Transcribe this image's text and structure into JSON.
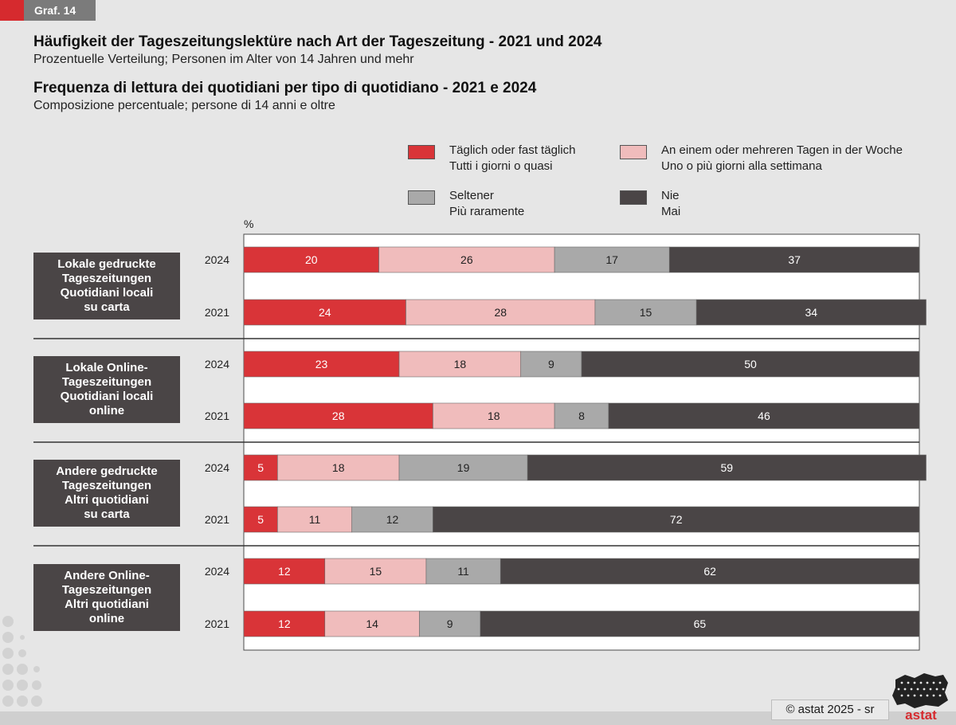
{
  "graf_label": "Graf. 14",
  "title_de": "Häufigkeit der Tageszeitungslektüre nach Art der Tageszeitung - 2021 und 2024",
  "subtitle_de": "Prozentuelle Verteilung; Personen im Alter von 14 Jahren und mehr",
  "title_it": "Frequenza di lettura dei quotidiani per tipo di quotidiano - 2021 e 2024",
  "subtitle_it": "Composizione percentuale; persone di 14 anni e oltre",
  "legend": [
    {
      "line1": "Täglich oder fast täglich",
      "line2": "Tutti i giorni o quasi",
      "color": "#d93438"
    },
    {
      "line1": "An einem oder mehreren Tagen in der Woche",
      "line2": "Uno o più giorni alla settimana",
      "color": "#f0bcbc"
    },
    {
      "line1": "Seltener",
      "line2": "Più raramente",
      "color": "#a9a9a9"
    },
    {
      "line1": "Nie",
      "line2": "Mai",
      "color": "#4a4546"
    }
  ],
  "groups": [
    {
      "line1": "Lokale gedruckte",
      "line2": "Tageszeitungen",
      "line3": "Quotidiani locali",
      "line4": "su carta"
    },
    {
      "line1": "Lokale Online-",
      "line2": "Tageszeitungen",
      "line3": "Quotidiani locali",
      "line4": "online"
    },
    {
      "line1": "Andere gedruckte",
      "line2": "Tageszeitungen",
      "line3": "Altri quotidiani",
      "line4": "su carta"
    },
    {
      "line1": "Andere Online-",
      "line2": "Tageszeitungen",
      "line3": "Altri quotidiani",
      "line4": "online"
    }
  ],
  "chart_data": {
    "type": "bar",
    "orientation": "horizontal",
    "stacked": true,
    "unit_label": "%",
    "xlim": [
      0,
      100
    ],
    "series_colors": [
      "#d93438",
      "#f0bcbc",
      "#a9a9a9",
      "#4a4546"
    ],
    "series_label_colors": [
      "#ffffff",
      "#222222",
      "#222222",
      "#ffffff"
    ],
    "rows": [
      {
        "group": 0,
        "year": "2024",
        "values": [
          20,
          26,
          17,
          37
        ]
      },
      {
        "group": 0,
        "year": "2021",
        "values": [
          24,
          28,
          15,
          34
        ]
      },
      {
        "group": 1,
        "year": "2024",
        "values": [
          23,
          18,
          9,
          50
        ]
      },
      {
        "group": 1,
        "year": "2021",
        "values": [
          28,
          18,
          8,
          46
        ]
      },
      {
        "group": 2,
        "year": "2024",
        "values": [
          5,
          18,
          19,
          59
        ]
      },
      {
        "group": 2,
        "year": "2021",
        "values": [
          5,
          11,
          12,
          72
        ]
      },
      {
        "group": 3,
        "year": "2024",
        "values": [
          12,
          15,
          11,
          62
        ]
      },
      {
        "group": 3,
        "year": "2021",
        "values": [
          12,
          14,
          9,
          65
        ]
      }
    ]
  },
  "credit": "astat 2025 - sr",
  "logo_text": "astat"
}
